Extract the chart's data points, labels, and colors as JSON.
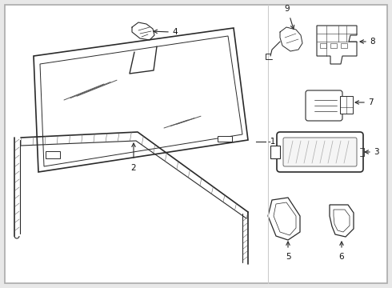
{
  "bg_color": "#e8e8e8",
  "panel_bg": "#ffffff",
  "line_color": "#2a2a2a",
  "label_color": "#111111",
  "fig_width": 4.9,
  "fig_height": 3.6,
  "dpi": 100
}
